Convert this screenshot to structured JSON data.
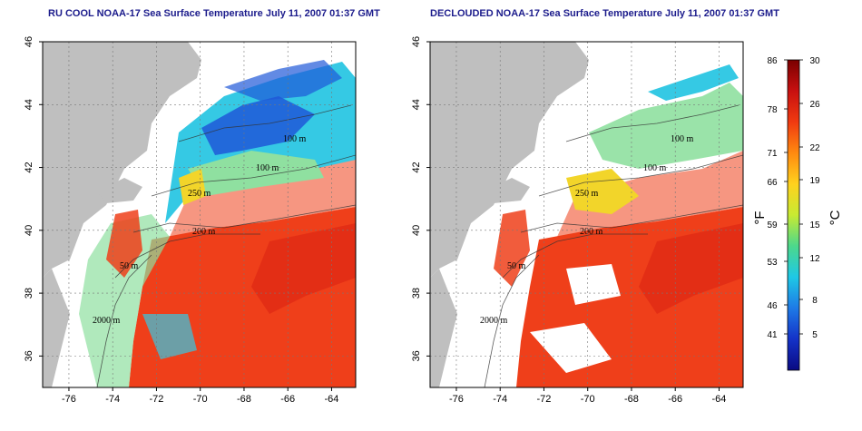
{
  "panels": [
    {
      "id": "left",
      "title": "RU COOL NOAA-17 Sea Surface Temperature July 11, 2007 01:37 GMT",
      "contour_labels": [
        "100 m",
        "100 m",
        "200 m",
        "250 m",
        "50 m",
        "2000 m"
      ],
      "clouds": "present"
    },
    {
      "id": "right",
      "title": "DECLOUDED NOAA-17 Sea Surface Temperature July 11, 2007 01:37 GMT",
      "contour_labels": [
        "100 m",
        "100 m",
        "200 m",
        "250 m",
        "50 m",
        "2000 m"
      ],
      "clouds": "removed"
    }
  ],
  "axes": {
    "lon_ticks": [
      "-76",
      "-74",
      "-72",
      "-70",
      "-68",
      "-66",
      "-64"
    ],
    "lat_ticks": [
      "46",
      "44",
      "42",
      "40",
      "38",
      "36"
    ],
    "lon_range": [
      -77.2,
      -62.9
    ],
    "lat_range": [
      35,
      46
    ],
    "grid": "dotted"
  },
  "colorbar": {
    "fahrenheit_ticks": [
      "86",
      "78",
      "71",
      "66",
      "59",
      "53",
      "46",
      "41"
    ],
    "celsius_ticks": [
      "30",
      "26",
      "22",
      "19",
      "15",
      "12",
      "8",
      "5"
    ],
    "fahrenheit_unit": "°F",
    "celsius_unit": "°C",
    "colors": [
      "#7a0000",
      "#c81010",
      "#f03a10",
      "#ff8a10",
      "#ffd21e",
      "#c8ea32",
      "#4cd88c",
      "#1ec8e6",
      "#1e7ae6",
      "#1432c8",
      "#0a0a82"
    ]
  },
  "colors": {
    "land": "#bfbfbf",
    "warm": "#ef3f1a",
    "hot": "#e02a14",
    "shelf_cool": "#35c9e4",
    "shelf_mid": "#8fe0a0",
    "shelf_yellow": "#f2d52a",
    "cold": "#1f58d8",
    "title": "#1c1c8c"
  }
}
